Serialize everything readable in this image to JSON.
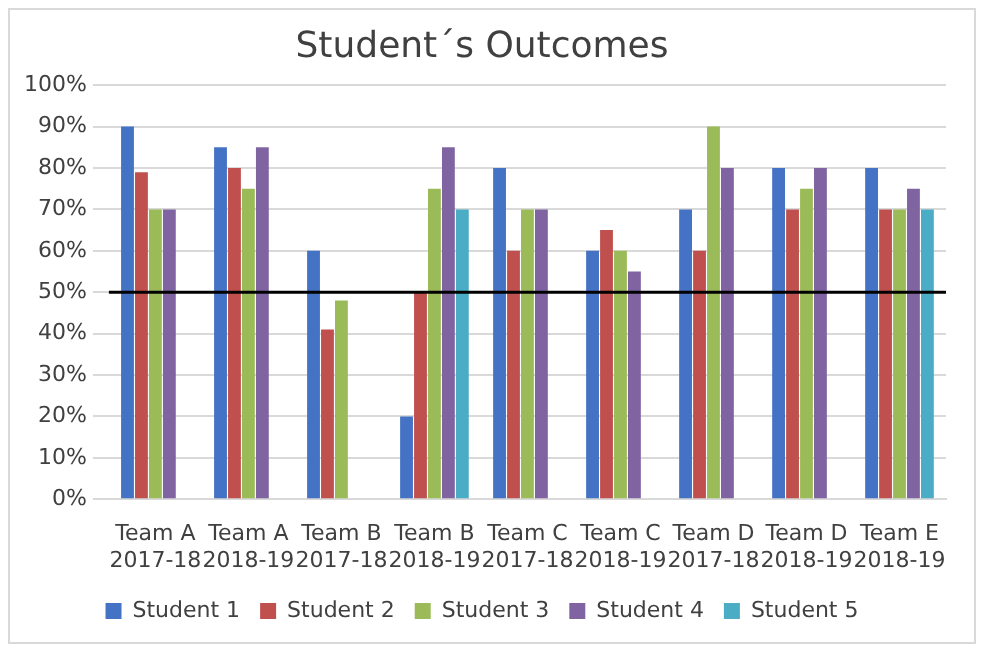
{
  "chart_data": {
    "type": "bar",
    "title": "Student´s Outcomes",
    "categories": [
      "Team A\n2017-18",
      "Team A\n2018-19",
      "Team B\n2017-18",
      "Team B\n2018-19",
      "Team C\n2017-18",
      "Team C\n2018-19",
      "Team D\n2017-18",
      "Team D\n2018-19",
      "Team E\n2018-19"
    ],
    "series": [
      {
        "name": "Student 1",
        "color": "#4472c4",
        "values": [
          90,
          85,
          60,
          20,
          80,
          60,
          70,
          80,
          80
        ]
      },
      {
        "name": "Student 2",
        "color": "#c0504d",
        "values": [
          79,
          80,
          41,
          50,
          60,
          65,
          60,
          70,
          70
        ]
      },
      {
        "name": "Student 3",
        "color": "#9bbb59",
        "values": [
          70,
          75,
          48,
          75,
          70,
          60,
          90,
          75,
          70
        ]
      },
      {
        "name": "Student 4",
        "color": "#8064a2",
        "values": [
          70,
          85,
          null,
          85,
          70,
          55,
          80,
          80,
          75
        ]
      },
      {
        "name": "Student 5",
        "color": "#4bacc6",
        "values": [
          null,
          null,
          null,
          70,
          null,
          null,
          null,
          null,
          70
        ]
      }
    ],
    "ylim": [
      0,
      100
    ],
    "yticks": [
      {
        "value": 0,
        "label": "0%"
      },
      {
        "value": 10,
        "label": "10%"
      },
      {
        "value": 20,
        "label": "20%"
      },
      {
        "value": 30,
        "label": "30%"
      },
      {
        "value": 40,
        "label": "40%"
      },
      {
        "value": 50,
        "label": "50%"
      },
      {
        "value": 60,
        "label": "60%"
      },
      {
        "value": 70,
        "label": "70%"
      },
      {
        "value": 80,
        "label": "80%"
      },
      {
        "value": 90,
        "label": "90%"
      },
      {
        "value": 100,
        "label": "100%"
      }
    ],
    "ref_lines": [
      {
        "axis": "y",
        "value": 50,
        "color": "#000000"
      }
    ],
    "grid": "y",
    "legend": "bottom"
  }
}
